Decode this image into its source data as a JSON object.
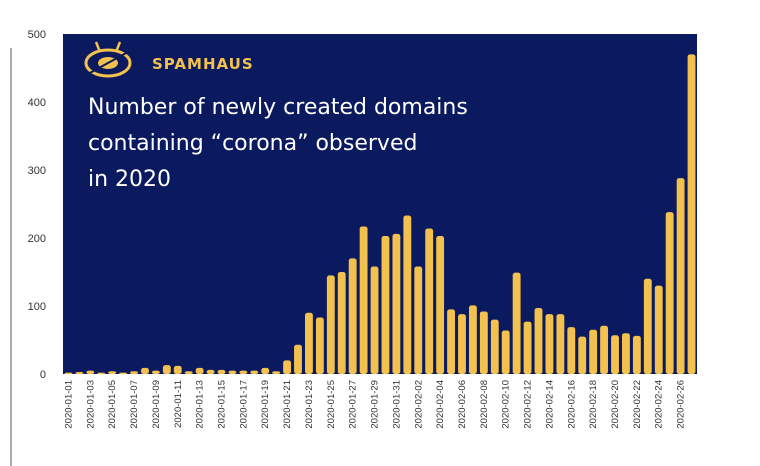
{
  "chart_data": {
    "type": "bar",
    "title_lines": [
      "Number of newly created domains",
      "containing “corona” observed",
      "in 2020"
    ],
    "brand": "SPAMHAUS",
    "xlabel": "",
    "ylabel": "",
    "ylim": [
      0,
      500
    ],
    "yticks": [
      0,
      100,
      200,
      300,
      400,
      500
    ],
    "grid": false,
    "colors": {
      "background": "#0b1a5e",
      "bar": "#f2c14e",
      "brand": "#f2c14e",
      "title": "#ffffff"
    },
    "categories": [
      "2020-01-01",
      "2020-01-02",
      "2020-01-03",
      "2020-01-04",
      "2020-01-05",
      "2020-01-06",
      "2020-01-07",
      "2020-01-08",
      "2020-01-09",
      "2020-01-10",
      "2020-01-11",
      "2020-01-12",
      "2020-01-13",
      "2020-01-14",
      "2020-01-15",
      "2020-01-16",
      "2020-01-17",
      "2020-01-18",
      "2020-01-19",
      "2020-01-20",
      "2020-01-21",
      "2020-01-22",
      "2020-01-23",
      "2020-01-24",
      "2020-01-25",
      "2020-01-26",
      "2020-01-27",
      "2020-01-28",
      "2020-01-29",
      "2020-01-30",
      "2020-01-31",
      "2020-02-01",
      "2020-02-02",
      "2020-02-03",
      "2020-02-04",
      "2020-02-05",
      "2020-02-06",
      "2020-02-07",
      "2020-02-08",
      "2020-02-09",
      "2020-02-10",
      "2020-02-11",
      "2020-02-12",
      "2020-02-13",
      "2020-02-14",
      "2020-02-15",
      "2020-02-16",
      "2020-02-17",
      "2020-02-18",
      "2020-02-19",
      "2020-02-20",
      "2020-02-21",
      "2020-02-22",
      "2020-02-23",
      "2020-02-24",
      "2020-02-25",
      "2020-02-26",
      "2020-02-27"
    ],
    "xtick_labels": [
      "2020-01-01",
      "2020-01-03",
      "2020-01-05",
      "2020-01-07",
      "2020-01-09",
      "2020-01-11",
      "2020-01-13",
      "2020-01-15",
      "2020-01-17",
      "2020-01-19",
      "2020-01-21",
      "2020-01-23",
      "2020-01-25",
      "2020-01-27",
      "2020-01-29",
      "2020-01-31",
      "2020-02-02",
      "2020-02-04",
      "2020-02-06",
      "2020-02-08",
      "2020-02-10",
      "2020-02-12",
      "2020-02-14",
      "2020-02-16",
      "2020-02-18",
      "2020-02-20",
      "2020-02-22",
      "2020-02-24",
      "2020-02-26"
    ],
    "values": [
      2,
      3,
      5,
      2,
      4,
      2,
      4,
      9,
      5,
      13,
      12,
      4,
      9,
      6,
      6,
      5,
      5,
      5,
      9,
      4,
      20,
      43,
      90,
      83,
      145,
      150,
      170,
      217,
      158,
      203,
      206,
      233,
      158,
      214,
      203,
      95,
      88,
      101,
      92,
      80,
      64,
      149,
      77,
      97,
      88,
      88,
      69,
      55,
      65,
      71,
      57,
      60,
      56,
      140,
      130,
      238,
      288,
      470
    ]
  }
}
